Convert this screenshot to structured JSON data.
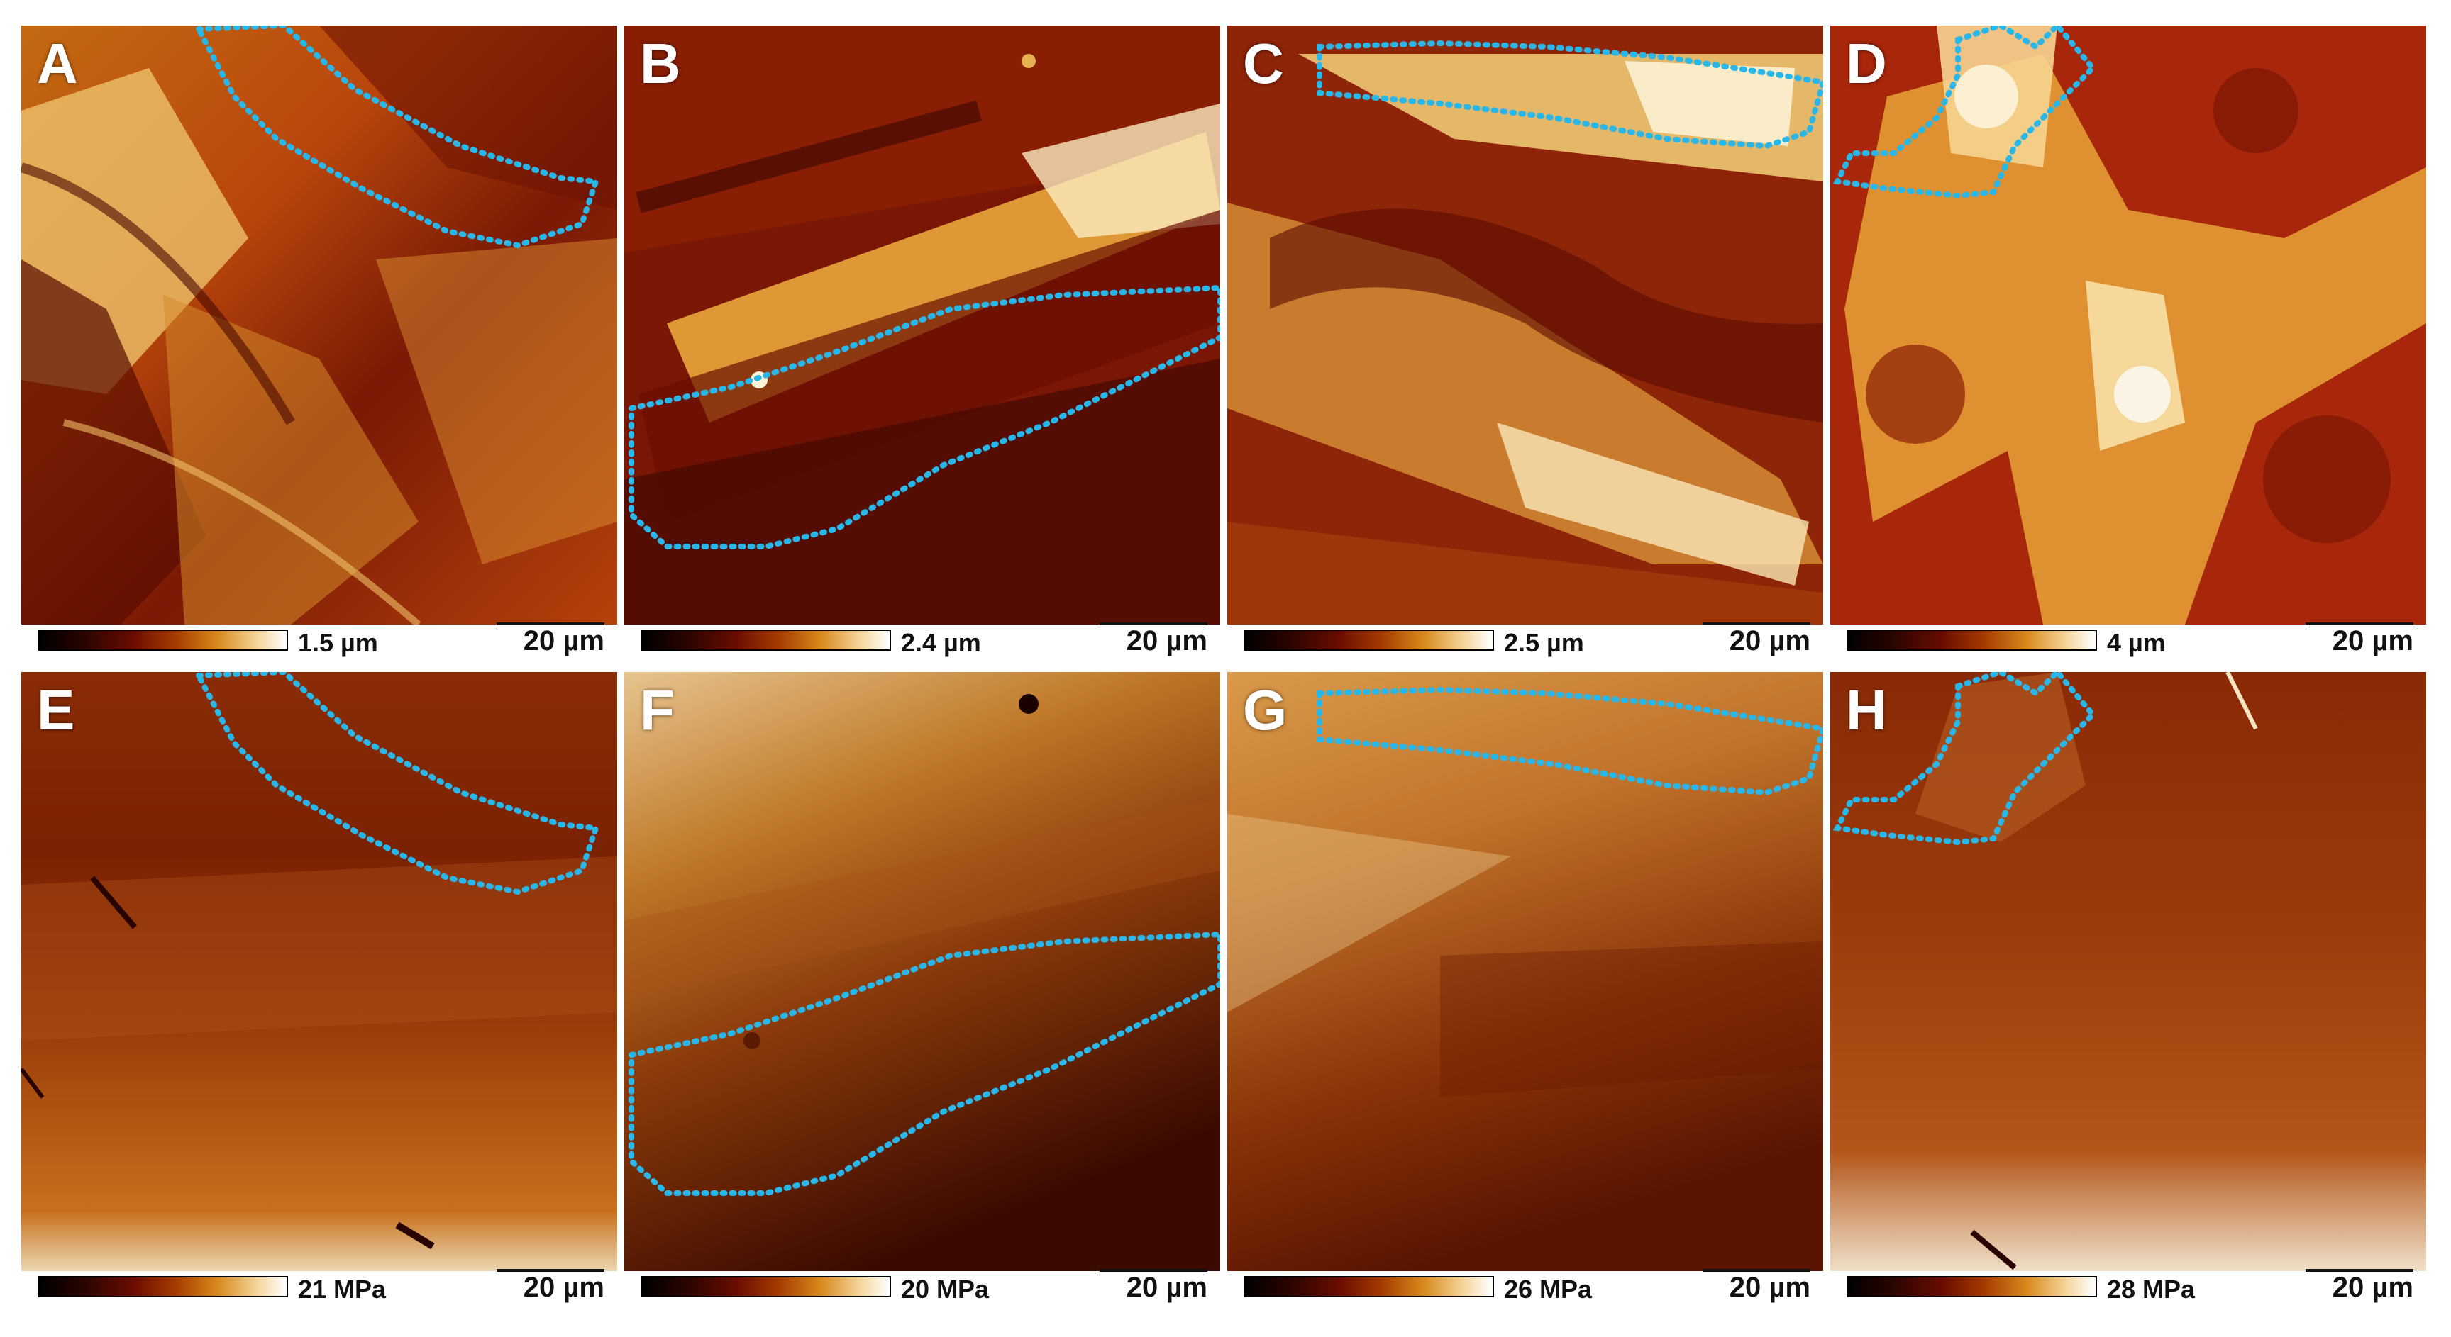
{
  "panels": [
    {
      "letter": "A",
      "colorbar": "1.5 µm",
      "scale": "20 µm"
    },
    {
      "letter": "B",
      "colorbar": "2.4 µm",
      "scale": "20 µm"
    },
    {
      "letter": "C",
      "colorbar": "2.5 µm",
      "scale": "20 µm"
    },
    {
      "letter": "D",
      "colorbar": "4 µm",
      "scale": "20 µm"
    },
    {
      "letter": "E",
      "colorbar": "21 MPa",
      "scale": "20 µm"
    },
    {
      "letter": "F",
      "colorbar": "20 MPa",
      "scale": "20 µm"
    },
    {
      "letter": "G",
      "colorbar": "26 MPa",
      "scale": "20 µm"
    },
    {
      "letter": "H",
      "colorbar": "28 MPa",
      "scale": "20 µm"
    }
  ],
  "colors": {
    "roi_outline": "#29b6e8",
    "dark": "#1a0200",
    "mid": "#8a1e05",
    "bright": "#e8a33a",
    "highlight": "#fff4d8"
  }
}
